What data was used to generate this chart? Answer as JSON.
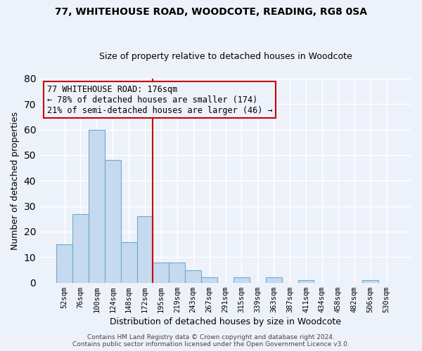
{
  "title": "77, WHITEHOUSE ROAD, WOODCOTE, READING, RG8 0SA",
  "subtitle": "Size of property relative to detached houses in Woodcote",
  "xlabel": "Distribution of detached houses by size in Woodcote",
  "ylabel": "Number of detached properties",
  "bar_labels": [
    "52sqm",
    "76sqm",
    "100sqm",
    "124sqm",
    "148sqm",
    "172sqm",
    "195sqm",
    "219sqm",
    "243sqm",
    "267sqm",
    "291sqm",
    "315sqm",
    "339sqm",
    "363sqm",
    "387sqm",
    "411sqm",
    "434sqm",
    "458sqm",
    "482sqm",
    "506sqm",
    "530sqm"
  ],
  "bar_values": [
    15,
    27,
    60,
    48,
    16,
    26,
    8,
    8,
    5,
    2,
    0,
    2,
    0,
    2,
    0,
    1,
    0,
    0,
    0,
    1,
    0
  ],
  "bar_color": "#c5d9ef",
  "bar_edgecolor": "#6aaad4",
  "ylim": [
    0,
    80
  ],
  "yticks": [
    0,
    10,
    20,
    30,
    40,
    50,
    60,
    70,
    80
  ],
  "vline_x": 5.5,
  "vline_color": "#cc0000",
  "annotation_line1": "77 WHITEHOUSE ROAD: 176sqm",
  "annotation_line2": "← 78% of detached houses are smaller (174)",
  "annotation_line3": "21% of semi-detached houses are larger (46) →",
  "annotation_box_color": "#cc0000",
  "footer_line1": "Contains HM Land Registry data © Crown copyright and database right 2024.",
  "footer_line2": "Contains public sector information licensed under the Open Government Licence v3.0.",
  "background_color": "#edf2fa",
  "grid_color": "#ffffff",
  "title_fontsize": 10,
  "subtitle_fontsize": 9,
  "ylabel_fontsize": 9,
  "xlabel_fontsize": 9,
  "tick_fontsize": 7.5,
  "footer_fontsize": 6.5,
  "annotation_fontsize": 8.5
}
